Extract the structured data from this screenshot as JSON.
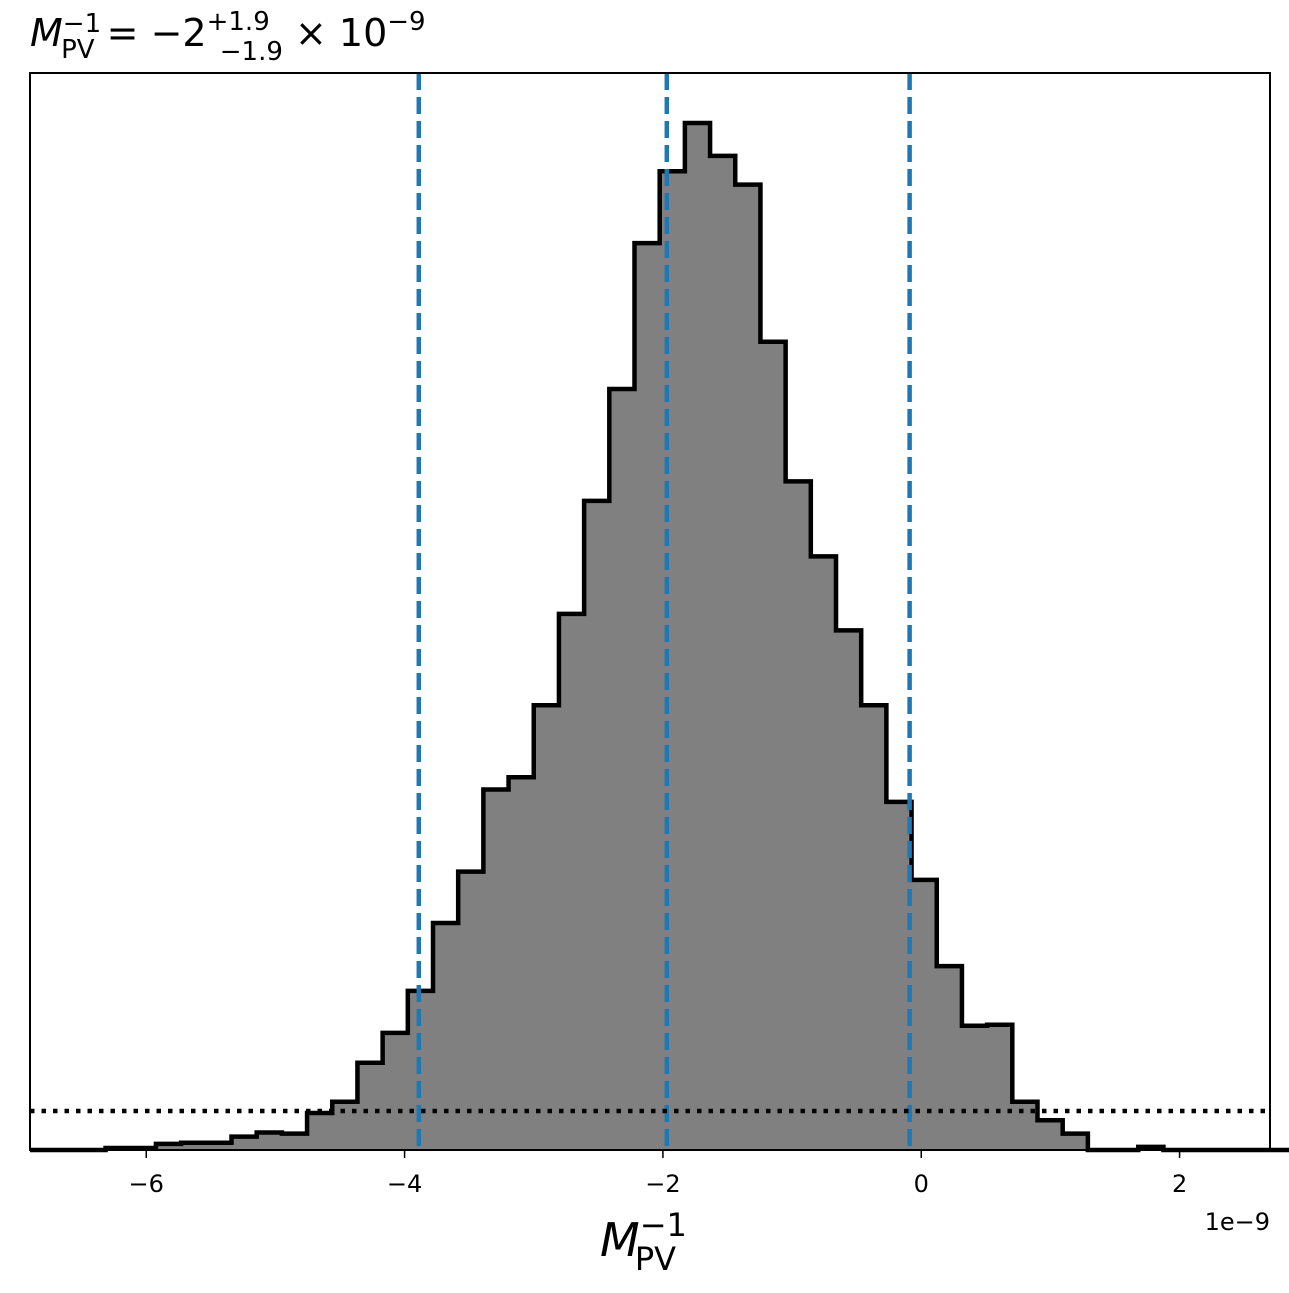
{
  "chart_data": {
    "type": "histogram",
    "title": {
      "symbol": "M",
      "sub": "PV",
      "sup": "−1",
      "equals": " = −2",
      "err_plus": "+1.9",
      "err_minus": "−1.9",
      "times": " × 10",
      "exponent": "−9"
    },
    "xlabel": {
      "symbol": "M",
      "sub": "PV",
      "sup": "−1"
    },
    "x_offset_label": "1e−9",
    "xlim": [
      -6.9,
      2.7
    ],
    "ylim": [
      0,
      1.0
    ],
    "ylabel": "",
    "grid": false,
    "x_ticks": [
      {
        "value": -6,
        "label": "−6"
      },
      {
        "value": -4,
        "label": "−4"
      },
      {
        "value": -2,
        "label": "−2"
      },
      {
        "value": 0,
        "label": "0"
      },
      {
        "value": 2,
        "label": "2"
      }
    ],
    "bins": {
      "start": -6.9,
      "width": 0.195,
      "heights": [
        0,
        0,
        0,
        0.002,
        0.002,
        0.006,
        0.007,
        0.007,
        0.013,
        0.017,
        0.016,
        0.036,
        0.047,
        0.085,
        0.114,
        0.155,
        0.221,
        0.271,
        0.351,
        0.363,
        0.433,
        0.522,
        0.632,
        0.741,
        0.883,
        0.953,
        1.0,
        0.968,
        0.94,
        0.787,
        0.651,
        0.578,
        0.506,
        0.433,
        0.339,
        0.263,
        0.179,
        0.121,
        0.122,
        0.047,
        0.029,
        0.016,
        0,
        0,
        0.003,
        0,
        0,
        0,
        0,
        0
      ]
    },
    "percentile_lines": [
      -3.89,
      -1.97,
      -0.09
    ],
    "reference_line": 0.038,
    "colors": {
      "fill": "#808080",
      "edge": "#000000",
      "percentile": "#1f77b4",
      "reference": "#000000"
    }
  }
}
